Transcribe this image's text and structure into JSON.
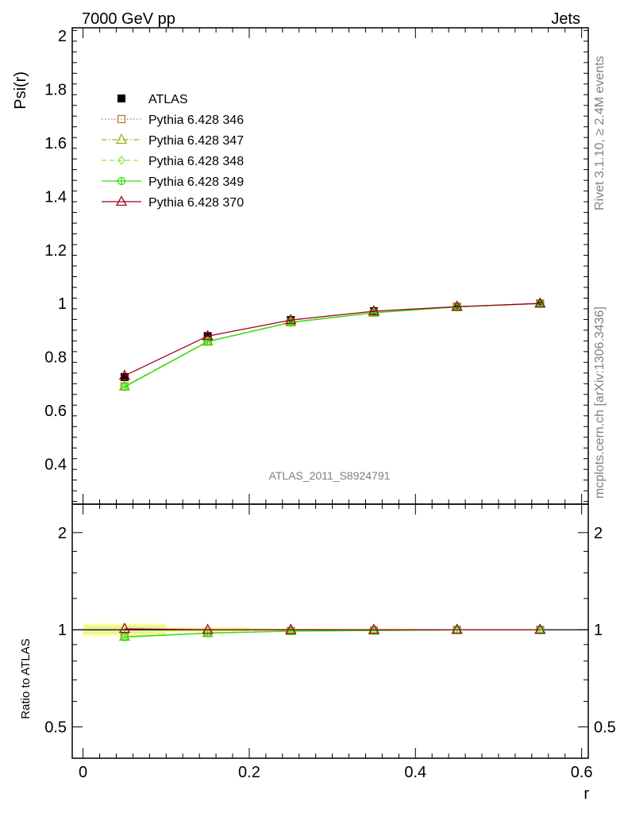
{
  "header": {
    "left": "7000 GeV pp",
    "right": "Jets"
  },
  "side_labels": {
    "rivet": "Rivet 3.1.10, ≥ 2.4M events",
    "mcplots": "mcplots.cern.ch [arXiv:1306.3436]"
  },
  "chart_data": [
    {
      "type": "line",
      "panel": "main",
      "title": "",
      "xlabel": "",
      "ylabel": "Psi(r)",
      "watermark": "ATLAS_2011_S8924791",
      "xlim": [
        -0.013,
        0.608
      ],
      "ylim": [
        0.25,
        2.03
      ],
      "yticks": [
        0.4,
        0.6,
        0.8,
        1,
        1.2,
        1.4,
        1.6,
        1.8,
        2
      ],
      "ytick_labels": [
        "0.4",
        "0.6",
        "0.8",
        "1",
        "1.2",
        "1.4",
        "1.6",
        "1.8",
        "2"
      ],
      "legend_position": "top-left",
      "x": [
        0.05,
        0.15,
        0.25,
        0.35,
        0.45,
        0.55
      ],
      "series": [
        {
          "name": "ATLAS",
          "values": [
            0.725,
            0.878,
            0.938,
            0.971,
            0.988,
            1.0
          ],
          "color": "#000000",
          "marker": "square-filled",
          "line": "none"
        },
        {
          "name": "Pythia 6.428 346",
          "values": [
            0.69,
            0.858,
            0.93,
            0.966,
            0.987,
            1.0
          ],
          "color": "#b07f3c",
          "marker": "square-open",
          "line": "dotted"
        },
        {
          "name": "Pythia 6.428 347",
          "values": [
            0.69,
            0.858,
            0.93,
            0.966,
            0.987,
            1.0
          ],
          "color": "#8db510",
          "marker": "triangle-open",
          "line": "dashdot"
        },
        {
          "name": "Pythia 6.428 348",
          "values": [
            0.69,
            0.858,
            0.929,
            0.966,
            0.987,
            1.0
          ],
          "color": "#8fe840",
          "marker": "diamond-open",
          "line": "dashed"
        },
        {
          "name": "Pythia 6.428 349",
          "values": [
            0.688,
            0.857,
            0.929,
            0.965,
            0.987,
            1.0
          ],
          "color": "#33dd11",
          "marker": "circle-cross",
          "line": "solid"
        },
        {
          "name": "Pythia 6.428 370",
          "values": [
            0.73,
            0.878,
            0.938,
            0.971,
            0.988,
            1.0
          ],
          "color": "#a00020",
          "marker": "triangle-open",
          "line": "solid"
        }
      ]
    },
    {
      "type": "line",
      "panel": "ratio",
      "ylabel": "Ratio to ATLAS",
      "xlabel": "r",
      "xlim": [
        -0.013,
        0.608
      ],
      "ylim": [
        0.4,
        2.45
      ],
      "log_y": true,
      "xticks": [
        0,
        0.2,
        0.4,
        0.6
      ],
      "xtick_labels": [
        "0",
        "0.2",
        "0.4",
        "0.6"
      ],
      "yticks": [
        0.5,
        1,
        2
      ],
      "ytick_labels": [
        "0.5",
        "1",
        "2"
      ],
      "x": [
        0.05,
        0.15,
        0.25,
        0.35,
        0.45,
        0.55
      ],
      "x_edges": [
        0.0,
        0.1,
        0.2,
        0.3,
        0.4,
        0.5,
        0.6
      ],
      "reference_band": {
        "outer": [
          0.045,
          0.018,
          0.01,
          0.006,
          0.004,
          0.002
        ],
        "inner": [
          0.028,
          0.012,
          0.006,
          0.004,
          0.002,
          0.001
        ]
      },
      "series": [
        {
          "name": "Pythia 6.428 346",
          "values": [
            0.952,
            0.977,
            0.991,
            0.995,
            0.999,
            1.0
          ],
          "color": "#b07f3c",
          "marker": "square-open",
          "line": "dotted"
        },
        {
          "name": "Pythia 6.428 347",
          "values": [
            0.952,
            0.977,
            0.991,
            0.995,
            0.999,
            1.0
          ],
          "color": "#8db510",
          "marker": "triangle-open",
          "line": "dashdot"
        },
        {
          "name": "Pythia 6.428 348",
          "values": [
            0.952,
            0.977,
            0.99,
            0.995,
            0.999,
            1.0
          ],
          "color": "#8fe840",
          "marker": "diamond-open",
          "line": "dashed"
        },
        {
          "name": "Pythia 6.428 349",
          "values": [
            0.949,
            0.976,
            0.99,
            0.994,
            0.999,
            1.0
          ],
          "color": "#33dd11",
          "marker": "circle-cross",
          "line": "solid"
        },
        {
          "name": "Pythia 6.428 370",
          "values": [
            1.007,
            1.0,
            1.0,
            1.0,
            1.0,
            1.0
          ],
          "color": "#a00020",
          "marker": "triangle-open",
          "line": "solid"
        }
      ]
    }
  ]
}
